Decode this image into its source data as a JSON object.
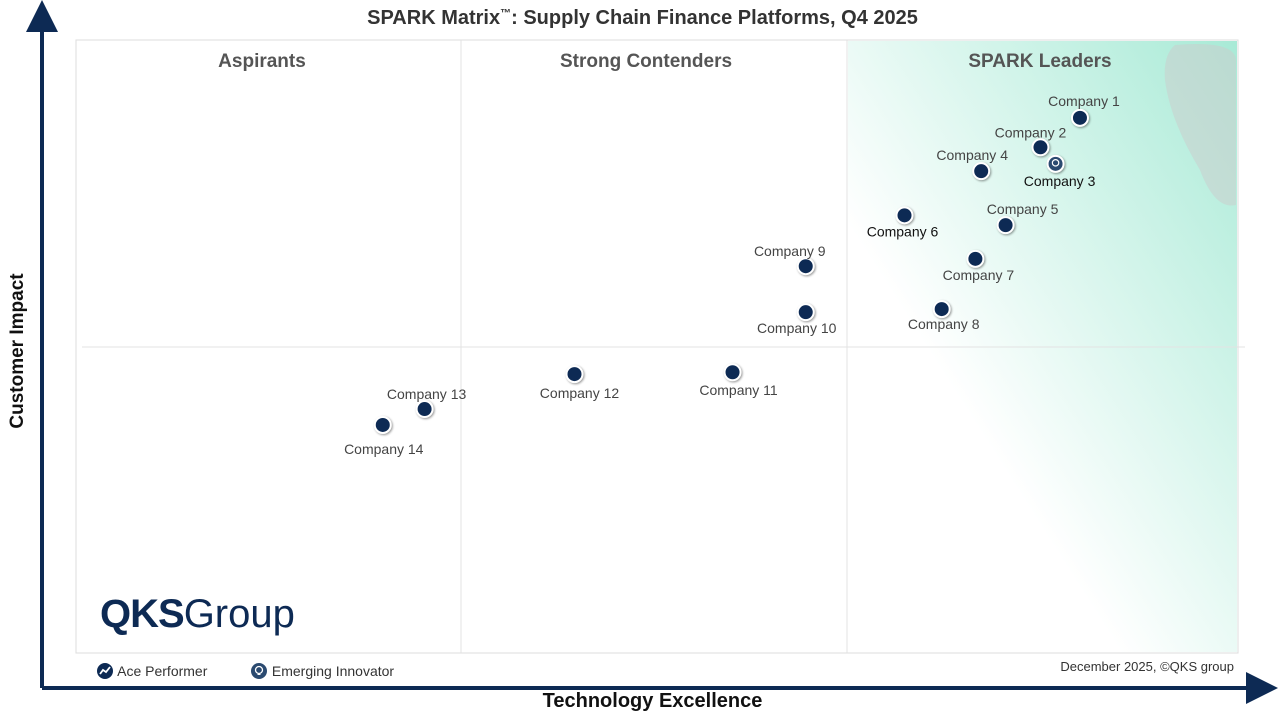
{
  "chart_data": {
    "type": "scatter",
    "title": "SPARK Matrix",
    "title_mark": "™",
    "title_rest": ": Supply Chain Finance Platforms, Q4 2025",
    "xlabel": "Technology Excellence",
    "ylabel": "Customer Impact",
    "xlim": [
      0,
      100
    ],
    "ylim": [
      0,
      100
    ],
    "quadrants": [
      "Aspirants",
      "Strong Contenders",
      "SPARK Leaders"
    ],
    "points": [
      {
        "name": "Company 1",
        "x": 86.4,
        "y": 87.3,
        "type": "Ace Performer"
      },
      {
        "name": "Company 2",
        "x": 83.0,
        "y": 82.5,
        "type": "Ace Performer"
      },
      {
        "name": "Company 3",
        "x": 84.3,
        "y": 79.8,
        "type": "Emerging Innovator"
      },
      {
        "name": "Company 4",
        "x": 77.9,
        "y": 78.6,
        "type": "Ace Performer"
      },
      {
        "name": "Company 5",
        "x": 80.0,
        "y": 69.8,
        "type": "Ace Performer"
      },
      {
        "name": "Company 6",
        "x": 71.3,
        "y": 71.4,
        "type": "Ace Performer"
      },
      {
        "name": "Company 7",
        "x": 77.4,
        "y": 64.3,
        "type": "Ace Performer"
      },
      {
        "name": "Company 8",
        "x": 74.5,
        "y": 56.1,
        "type": "Ace Performer"
      },
      {
        "name": "Company 9",
        "x": 62.8,
        "y": 63.1,
        "type": "Ace Performer"
      },
      {
        "name": "Company 10",
        "x": 62.8,
        "y": 55.6,
        "type": "Ace Performer"
      },
      {
        "name": "Company 11",
        "x": 56.5,
        "y": 45.8,
        "type": "Ace Performer"
      },
      {
        "name": "Company 12",
        "x": 42.9,
        "y": 45.5,
        "type": "Ace Performer"
      },
      {
        "name": "Company 13",
        "x": 30.0,
        "y": 39.8,
        "type": "Ace Performer"
      },
      {
        "name": "Company 14",
        "x": 26.4,
        "y": 37.2,
        "type": "Ace Performer"
      }
    ],
    "legend": [
      "Ace Performer",
      "Emerging Innovator"
    ],
    "legend_placement": "bottom-left",
    "colors": {
      "point": "#0d2a54",
      "leaders_bg": "#a8ead6",
      "axis": "#0d2a54"
    }
  },
  "footer": {
    "date": "December 2025, ©QKS group",
    "logo": "QKS Group",
    "logo_bold": "QKS",
    "logo_rest": "Group"
  }
}
